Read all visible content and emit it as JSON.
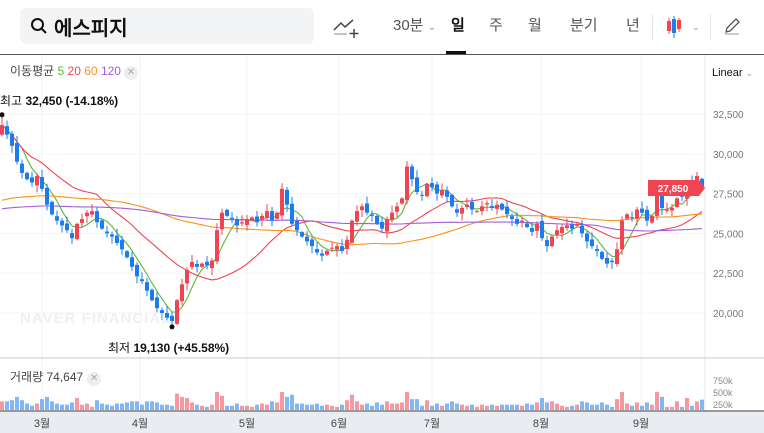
{
  "search": {
    "query": "에스피지",
    "icon": "search-icon"
  },
  "toolbar": {
    "interval": "30분",
    "tabs": [
      "일",
      "주",
      "월",
      "분기",
      "년"
    ],
    "selected": "일"
  },
  "indicator": {
    "label": "이동평균",
    "periods": [
      "5",
      "20",
      "60",
      "120"
    ],
    "colors": [
      "#5cb83c",
      "#f04452",
      "#f7931e",
      "#a35fd6"
    ]
  },
  "scale": "Linear",
  "high_label": {
    "k": "최고",
    "v": "32,450 (-14.18%)"
  },
  "low_label": {
    "k": "최저",
    "v": "19,130 (+45.58%)"
  },
  "current_price": "27,850",
  "volume": {
    "label": "거래량",
    "value": "74,647",
    "ticks": [
      "750k",
      "500k",
      "250k"
    ]
  },
  "y_ticks": [
    "32,500",
    "30,000",
    "27,500",
    "25,000",
    "22,500",
    "20,000"
  ],
  "x_ticks": [
    "3월",
    "4월",
    "5월",
    "6월",
    "7월",
    "8월",
    "9월"
  ],
  "watermark": "NAVER FINANCIAL",
  "colors": {
    "up": "#f04452",
    "down": "#1b7cf0"
  },
  "chart_data": {
    "type": "candlestick",
    "ylim": [
      17500,
      35000
    ],
    "closes": [
      31800,
      31200,
      30500,
      29500,
      28800,
      28400,
      28200,
      28600,
      27800,
      26800,
      26200,
      25800,
      25500,
      25200,
      24700,
      25600,
      25900,
      26300,
      26400,
      25700,
      25300,
      25000,
      24800,
      24400,
      24000,
      23500,
      22900,
      22300,
      22000,
      21400,
      20800,
      20300,
      20000,
      19700,
      19500,
      20800,
      21800,
      22700,
      23200,
      22900,
      23100,
      23000,
      23300,
      25200,
      26300,
      26100,
      25900,
      25500,
      25700,
      25900,
      26000,
      25700,
      26100,
      26400,
      25800,
      26300,
      27800,
      26800,
      25600,
      25200,
      24800,
      24500,
      24200,
      23800,
      23600,
      23900,
      24100,
      24200,
      23900,
      24600,
      25800,
      26400,
      26700,
      26300,
      26100,
      25600,
      25300,
      25900,
      26300,
      26700,
      27200,
      29200,
      28400,
      27600,
      27400,
      28100,
      27900,
      27500,
      27700,
      27300,
      26700,
      26300,
      26600,
      26800,
      26500,
      26400,
      26700,
      26900,
      26600,
      26800,
      26500,
      26200,
      25900,
      25600,
      25800,
      25400,
      25100,
      25600,
      24700,
      24200,
      24800,
      25200,
      25400,
      25500,
      25300,
      25600,
      25000,
      24500,
      24200,
      23900,
      23400,
      23100,
      23200,
      24000,
      25800,
      26200,
      26000,
      26500,
      26300,
      25800,
      26100,
      27600,
      26600,
      26500,
      26600,
      27200,
      27300,
      28200,
      28000,
      28600,
      27850
    ]
  }
}
